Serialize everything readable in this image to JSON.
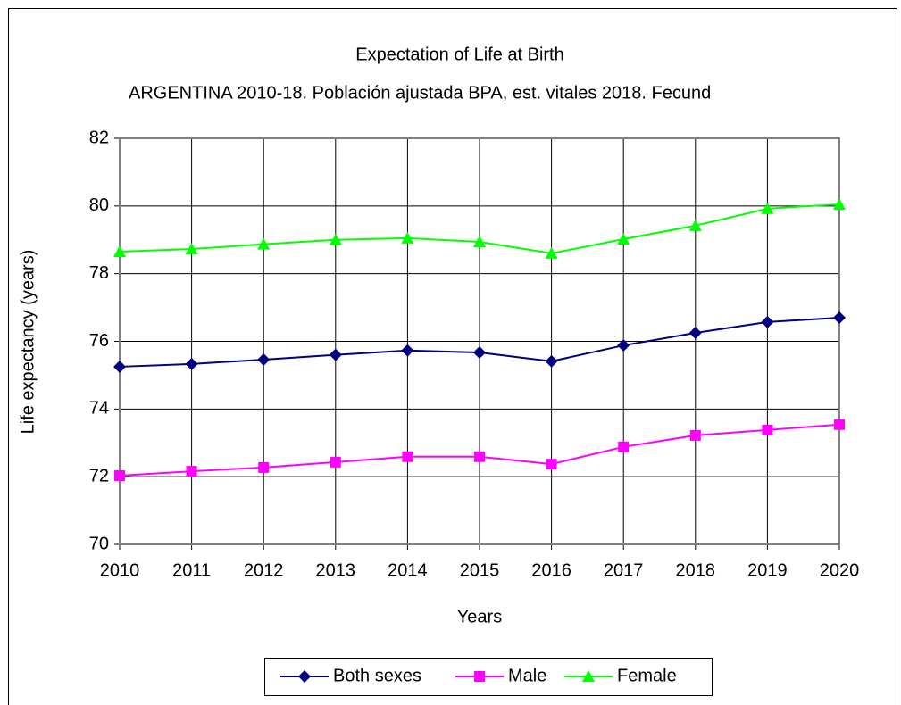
{
  "chart_data": {
    "type": "line",
    "title": "Expectation of Life at Birth",
    "subtitle": "ARGENTINA 2010-18. Población ajustada BPA, est. vitales 2018. Fecund",
    "x_label": "Years",
    "y_label": "Life expectancy (years)",
    "x": [
      2010,
      2011,
      2012,
      2013,
      2014,
      2015,
      2016,
      2017,
      2018,
      2019,
      2020
    ],
    "xlim": [
      2010,
      2020
    ],
    "xticks": [
      2010,
      2011,
      2012,
      2013,
      2014,
      2015,
      2016,
      2017,
      2018,
      2019,
      2020
    ],
    "ylim": [
      70,
      82
    ],
    "yticks": [
      70,
      72,
      74,
      76,
      78,
      80,
      82
    ],
    "grid": true,
    "legend": "bottom",
    "series": [
      {
        "name": "Both sexes",
        "color": "#000080",
        "marker": "diamond",
        "values": [
          75.25,
          75.33,
          75.46,
          75.6,
          75.73,
          75.67,
          75.41,
          75.88,
          76.25,
          76.57,
          76.7
        ]
      },
      {
        "name": "Male",
        "color": "#ff00ff",
        "marker": "square",
        "values": [
          72.03,
          72.16,
          72.27,
          72.43,
          72.59,
          72.59,
          72.37,
          72.88,
          73.22,
          73.38,
          73.54
        ]
      },
      {
        "name": "Female",
        "color": "#00ff00",
        "marker": "triangle",
        "values": [
          78.65,
          78.73,
          78.87,
          79.0,
          79.05,
          78.94,
          78.6,
          79.02,
          79.42,
          79.92,
          80.05
        ]
      }
    ]
  }
}
